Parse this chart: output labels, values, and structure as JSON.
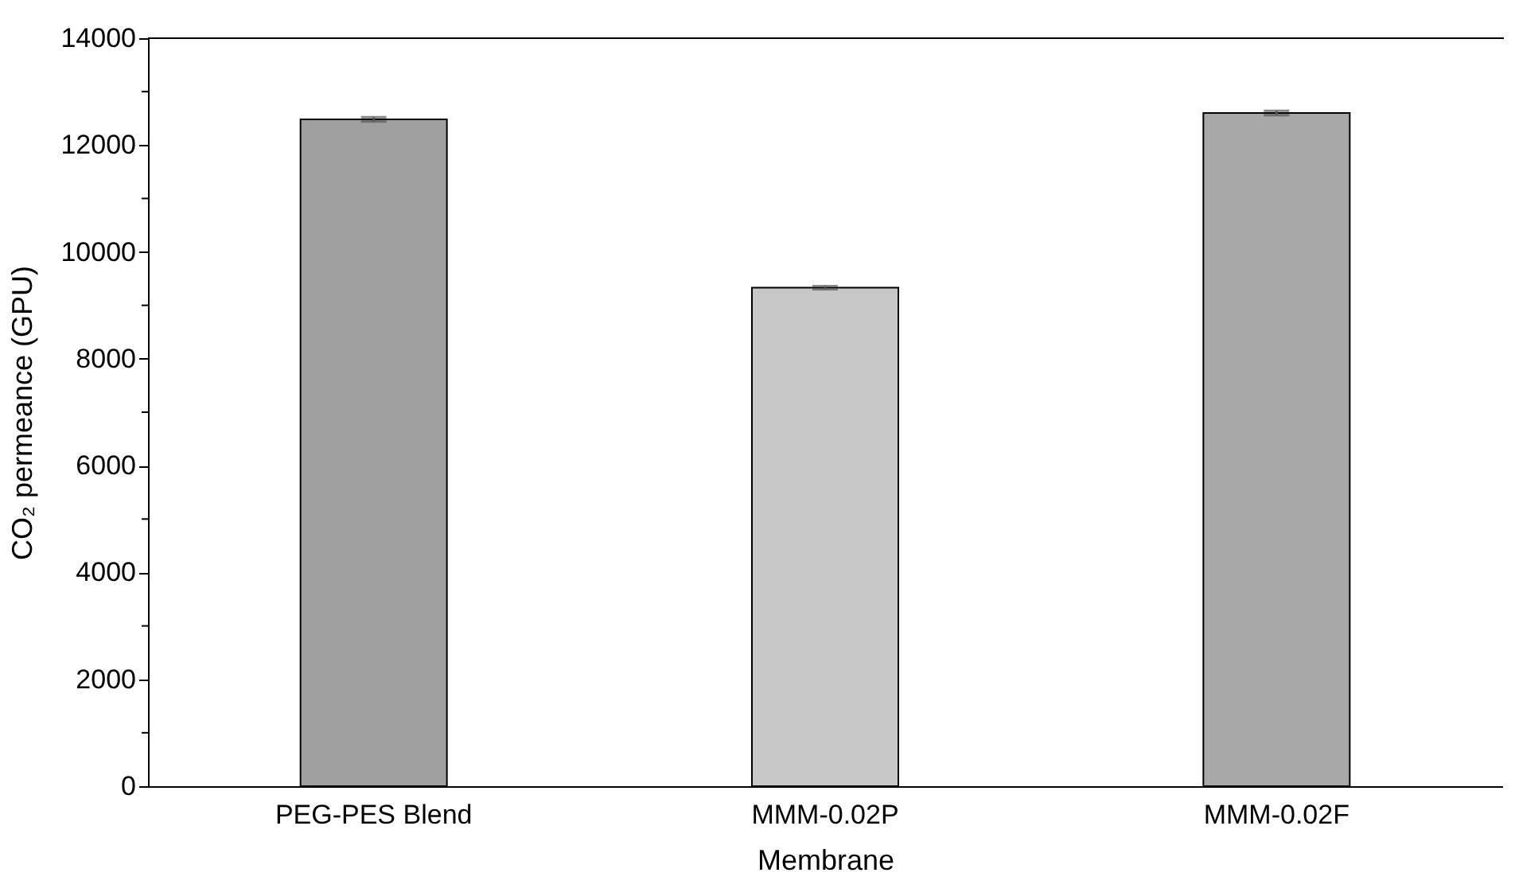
{
  "chart_data": {
    "type": "bar",
    "xlabel": "Membrane",
    "ylabel": "CO₂ permeance (GPU)",
    "categories": [
      "PEG-PES Blend",
      "MMM-0.02P",
      "MMM-0.02F"
    ],
    "values": [
      12480,
      9330,
      12600
    ],
    "errors": [
      40,
      30,
      40
    ],
    "colors": [
      "#a0a0a0",
      "#c8c8c8",
      "#a8a8a8"
    ],
    "ylim": [
      0,
      14000
    ],
    "yticks": [
      0,
      {
        "value": 1000,
        "label": null
      },
      2000,
      {
        "value": 3000,
        "label": null
      },
      4000,
      {
        "value": 5000,
        "label": null
      },
      6000,
      {
        "value": 7000,
        "label": null
      },
      8000,
      {
        "value": 9000,
        "label": null
      },
      10000,
      {
        "value": 11000,
        "label": null
      },
      12000,
      {
        "value": 13000,
        "label": null
      },
      14000
    ],
    "grid": false
  }
}
